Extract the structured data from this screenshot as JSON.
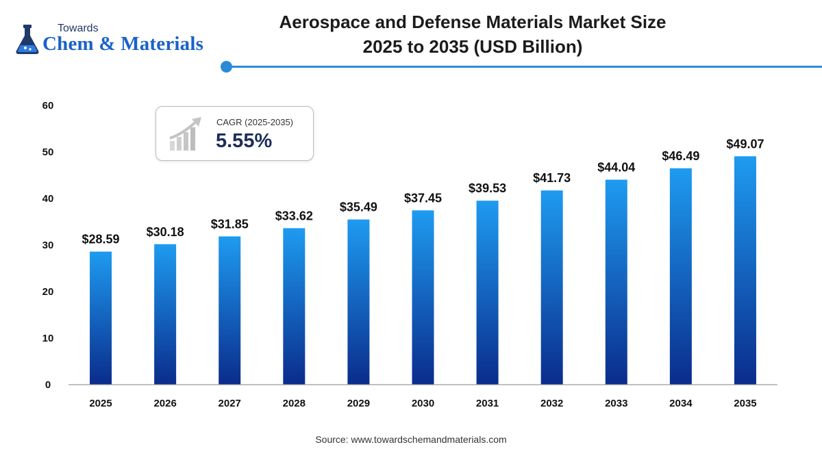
{
  "logo": {
    "small": "Towards",
    "big": "Chem & Materials"
  },
  "title": {
    "line1": "Aerospace and Defense Materials Market Size",
    "line2": "2025 to 2035 (USD Billion)"
  },
  "cagr": {
    "label": "CAGR (2025-2035)",
    "value": "5.55%"
  },
  "source": "Source: www.towardschemandmaterials.com",
  "colors": {
    "bar_top": "#1e9bf0",
    "bar_bottom": "#0a2c8c",
    "rule": "#2a8ad8",
    "logo_blue": "#1a62c9"
  },
  "chart_data": {
    "type": "bar",
    "categories": [
      "2025",
      "2026",
      "2027",
      "2028",
      "2029",
      "2030",
      "2031",
      "2032",
      "2033",
      "2034",
      "2035"
    ],
    "values": [
      28.59,
      30.18,
      31.85,
      33.62,
      35.49,
      37.45,
      39.53,
      41.73,
      44.04,
      46.49,
      49.07
    ],
    "data_labels": [
      "$28.59",
      "$30.18",
      "$31.85",
      "$33.62",
      "$35.49",
      "$37.45",
      "$39.53",
      "$41.73",
      "$44.04",
      "$46.49",
      "$49.07"
    ],
    "yticks": [
      0,
      10,
      20,
      30,
      40,
      50,
      60
    ],
    "ylim": [
      0,
      60
    ],
    "xlabel": "",
    "ylabel": "",
    "grid": false,
    "legend": "none"
  }
}
